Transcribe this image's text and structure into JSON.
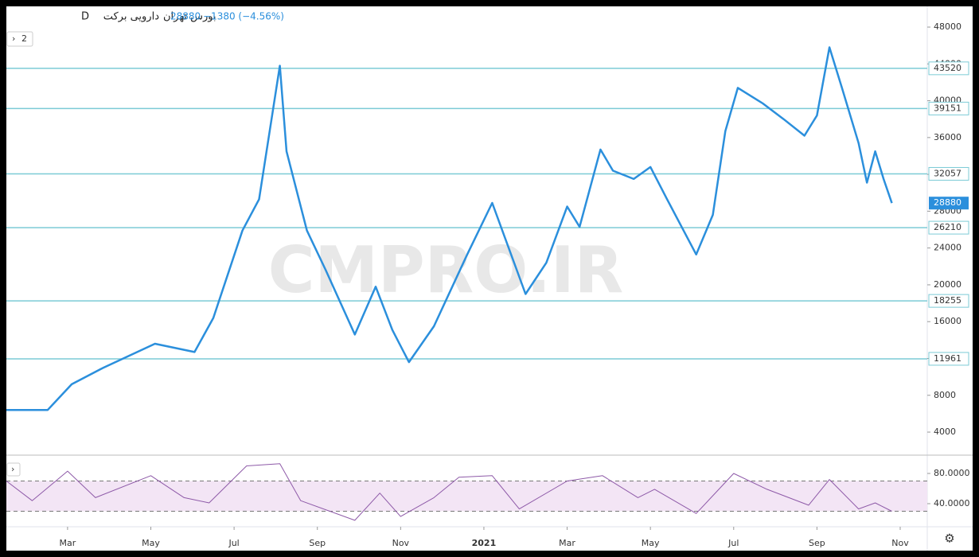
{
  "header": {
    "symbol": "دارویی برکت",
    "interval": "D",
    "exchange": "بورس تهران",
    "change": "−1380 (−4.56%)",
    "indicator_count": "2",
    "watermark": "CMPRO.IR"
  },
  "chart_data": [
    {
      "type": "line",
      "last_price": 28880,
      "x": [
        0.53,
        1.52,
        2.1,
        2.86,
        4.1,
        5.05,
        5.5,
        6.2,
        6.6,
        7.1,
        7.26,
        7.75,
        8.2,
        8.9,
        9.4,
        9.8,
        10.2,
        10.8,
        11.6,
        12.2,
        13.0,
        13.5,
        14.0,
        14.3,
        14.8,
        15.1,
        15.6,
        16.0,
        16.4,
        17.1,
        17.5,
        17.8,
        18.1,
        18.7,
        19.2,
        19.7,
        20.0,
        20.3,
        20.6,
        21.0,
        21.2,
        21.4,
        21.6,
        21.8
      ],
      "series": [
        {
          "color": "#2b8fdc",
          "values": [
            6400,
            6400,
            9200,
            11000,
            13600,
            12700,
            16400,
            25900,
            29300,
            43800,
            34500,
            25900,
            21600,
            14600,
            19800,
            15100,
            11600,
            15500,
            23300,
            28900,
            19000,
            22400,
            28500,
            26300,
            34700,
            32400,
            31500,
            32800,
            29300,
            23300,
            27600,
            36700,
            41400,
            39700,
            38000,
            36200,
            38400,
            45800,
            41400,
            35400,
            31100,
            34500,
            31500,
            28880
          ]
        }
      ],
      "levels": [
        43520,
        39151,
        32057,
        26210,
        18255,
        11961
      ],
      "level_color": "#7ccbd6",
      "xlim": [
        0.53,
        22.65
      ],
      "xticks": [
        {
          "value": 2,
          "label": "Mar"
        },
        {
          "value": 4,
          "label": "May"
        },
        {
          "value": 6,
          "label": "Jul"
        },
        {
          "value": 8,
          "label": "Sep"
        },
        {
          "value": 10,
          "label": "Nov"
        },
        {
          "value": 12,
          "label": "2021"
        },
        {
          "value": 14,
          "label": "Mar"
        },
        {
          "value": 16,
          "label": "May"
        },
        {
          "value": 18,
          "label": "Jul"
        },
        {
          "value": 20,
          "label": "Sep"
        },
        {
          "value": 22,
          "label": "Nov"
        }
      ],
      "ylim": [
        1670,
        50250
      ],
      "yticks": [
        4000,
        8000,
        12000,
        16000,
        20000,
        24000,
        28000,
        32000,
        36000,
        40000,
        44000,
        48000
      ],
      "grid": false
    },
    {
      "type": "line",
      "x": [
        0.53,
        1.15,
        2.0,
        2.67,
        4.0,
        4.8,
        5.4,
        6.3,
        7.1,
        7.6,
        8.9,
        9.5,
        10.0,
        10.8,
        11.4,
        12.2,
        12.85,
        14.0,
        14.85,
        15.7,
        16.1,
        17.1,
        18.0,
        18.8,
        19.8,
        20.3,
        21.0,
        21.4,
        21.8
      ],
      "series": [
        {
          "color": "#8e5aa8",
          "values": [
            70,
            44,
            83,
            48,
            77,
            48,
            41,
            90,
            93,
            44,
            18,
            54,
            23,
            48,
            75,
            77,
            33,
            70,
            77,
            48,
            59,
            27,
            80,
            59,
            38,
            72,
            33,
            41,
            30
          ]
        }
      ],
      "bands": [
        30,
        70
      ],
      "band_color": "#f3e5f5",
      "xlim": [
        0.53,
        22.65
      ],
      "ylim": [
        16.8,
        97.9
      ],
      "yticks": [
        {
          "value": 40,
          "label": "40.0000"
        },
        {
          "value": 80,
          "label": "80.0000"
        }
      ]
    }
  ]
}
